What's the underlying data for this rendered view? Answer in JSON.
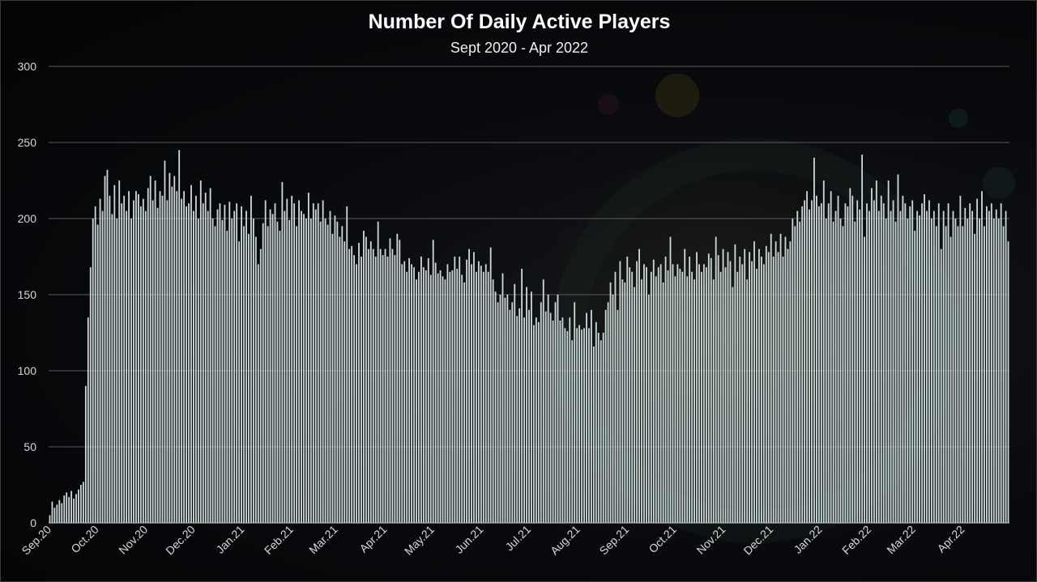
{
  "chart_data": {
    "type": "bar",
    "title": "Number Of Daily Active Players",
    "subtitle": "Sept 2020 - Apr 2022",
    "xlabel": "",
    "ylabel": "",
    "ylim": [
      0,
      300
    ],
    "yticks": [
      0,
      50,
      100,
      150,
      200,
      250,
      300
    ],
    "grid": true,
    "x_tick_labels": [
      "Sep.20",
      "Oct.20",
      "Nov.20",
      "Dec.20",
      "Jan.21",
      "Feb.21",
      "Mar.21",
      "Apr.21",
      "May.21",
      "Jun.21",
      "Jul.21",
      "Aug.21",
      "Sep.21",
      "Oct.21",
      "Nov.21",
      "Dec.21",
      "Jan.22",
      "Feb.22",
      "Mar.22",
      "Apr.22"
    ],
    "x_range": [
      "2020-09-01",
      "2022-04-30"
    ],
    "series": [
      {
        "color": "#c9d8d6",
        "values": [
          5,
          14,
          10,
          12,
          15,
          13,
          18,
          20,
          17,
          21,
          16,
          19,
          22,
          25,
          27,
          90,
          135,
          168,
          200,
          208,
          196,
          213,
          205,
          228,
          232,
          215,
          203,
          222,
          200,
          225,
          210,
          215,
          205,
          218,
          200,
          212,
          218,
          216,
          208,
          213,
          205,
          220,
          228,
          212,
          225,
          207,
          218,
          215,
          238,
          212,
          230,
          221,
          228,
          218,
          245,
          213,
          218,
          208,
          210,
          222,
          205,
          215,
          200,
          225,
          210,
          217,
          205,
          220,
          200,
          195,
          206,
          210,
          199,
          209,
          192,
          211,
          200,
          205,
          210,
          185,
          208,
          195,
          205,
          190,
          215,
          200,
          188,
          170,
          180,
          197,
          212,
          195,
          206,
          203,
          210,
          198,
          192,
          224,
          205,
          213,
          199,
          215,
          210,
          195,
          212,
          205,
          203,
          200,
          217,
          200,
          210,
          206,
          210,
          198,
          212,
          200,
          196,
          205,
          190,
          202,
          198,
          188,
          195,
          185,
          208,
          180,
          182,
          176,
          170,
          184,
          175,
          192,
          188,
          180,
          185,
          180,
          175,
          198,
          180,
          176,
          180,
          175,
          187,
          180,
          176,
          190,
          186,
          170,
          172,
          165,
          174,
          170,
          168,
          160,
          165,
          175,
          168,
          166,
          174,
          163,
          186,
          171,
          164,
          166,
          162,
          160,
          170,
          165,
          166,
          175,
          167,
          175,
          163,
          158,
          173,
          180,
          170,
          178,
          165,
          172,
          169,
          165,
          170,
          165,
          181,
          160,
          152,
          145,
          150,
          164,
          148,
          150,
          140,
          145,
          157,
          136,
          141,
          167,
          135,
          155,
          140,
          152,
          130,
          135,
          132,
          145,
          160,
          139,
          150,
          138,
          133,
          145,
          150,
          133,
          135,
          128,
          126,
          135,
          120,
          145,
          128,
          130,
          127,
          128,
          138,
          128,
          140,
          116,
          132,
          125,
          120,
          125,
          140,
          145,
          158,
          150,
          165,
          140,
          172,
          160,
          158,
          175,
          168,
          165,
          155,
          172,
          180,
          160,
          170,
          168,
          150,
          165,
          173,
          162,
          168,
          170,
          158,
          175,
          166,
          188,
          170,
          162,
          170,
          167,
          165,
          180,
          162,
          175,
          165,
          160,
          178,
          170,
          165,
          170,
          168,
          177,
          174,
          160,
          188,
          176,
          165,
          180,
          168,
          178,
          172,
          155,
          183,
          165,
          175,
          170,
          180,
          160,
          178,
          172,
          185,
          167,
          180,
          175,
          170,
          182,
          178,
          190,
          175,
          185,
          178,
          190,
          175,
          188,
          180,
          185,
          200,
          195,
          205,
          198,
          208,
          212,
          218,
          206,
          212,
          240,
          215,
          208,
          210,
          225,
          200,
          210,
          218,
          198,
          205,
          215,
          200,
          195,
          210,
          208,
          220,
          215,
          198,
          212,
          206,
          242,
          188,
          210,
          205,
          220,
          212,
          225,
          205,
          215,
          210,
          200,
          225,
          205,
          212,
          198,
          229,
          205,
          215,
          210,
          200,
          208,
          212,
          192,
          205,
          202,
          210,
          216,
          205,
          212,
          200,
          205,
          195,
          210,
          180,
          205,
          195,
          210,
          188,
          205,
          200,
          195,
          215,
          195,
          207,
          200,
          210,
          205,
          190,
          213,
          200,
          218,
          195,
          208,
          205,
          210,
          200,
          206,
          200,
          210,
          195,
          205,
          185
        ]
      }
    ]
  }
}
